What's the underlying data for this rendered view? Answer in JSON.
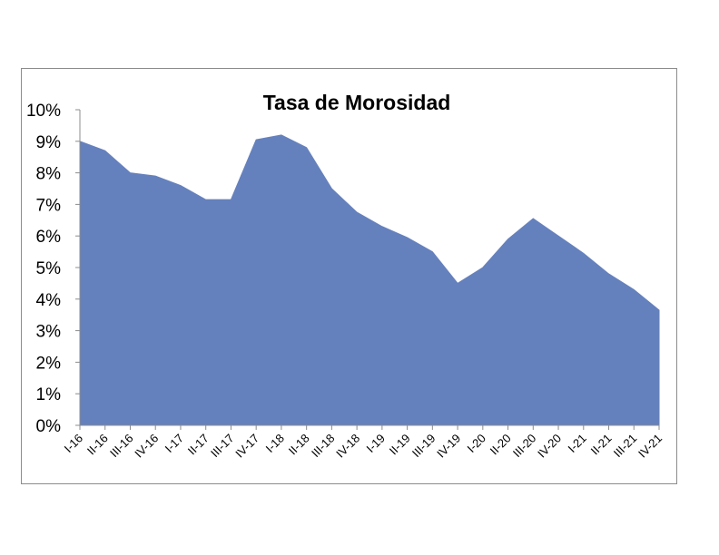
{
  "chart_data": {
    "type": "area",
    "title": "Tasa de Morosidad",
    "xlabel": "",
    "ylabel": "",
    "ylim": [
      0,
      10
    ],
    "yticks": [
      "0%",
      "1%",
      "2%",
      "3%",
      "4%",
      "5%",
      "6%",
      "7%",
      "8%",
      "9%",
      "10%"
    ],
    "categories": [
      "I-16",
      "II-16",
      "III-16",
      "IV-16",
      "I-17",
      "II-17",
      "III-17",
      "IV-17",
      "I-18",
      "II-18",
      "III-18",
      "IV-18",
      "I-19",
      "II-19",
      "III-19",
      "IV-19",
      "I-20",
      "II-20",
      "III-20",
      "IV-20",
      "I-21",
      "II-21",
      "III-21",
      "IV-21"
    ],
    "series": [
      {
        "values": [
          9.0,
          8.7,
          8.0,
          7.9,
          7.6,
          7.15,
          7.15,
          9.05,
          9.2,
          8.8,
          7.5,
          6.75,
          6.3,
          5.95,
          5.5,
          4.5,
          5.0,
          5.9,
          6.55,
          6.0,
          5.45,
          4.8,
          4.3,
          3.65
        ],
        "color": "#6581bd"
      }
    ],
    "grid": false,
    "legend": "none"
  }
}
